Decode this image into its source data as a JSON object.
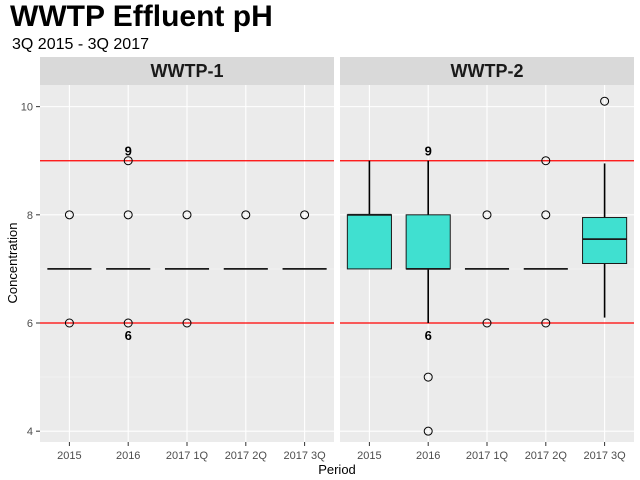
{
  "chart_data": {
    "type": "box",
    "title": "WWTP Effluent pH",
    "subtitle": "3Q 2015 - 3Q 2017",
    "xlabel": "Period",
    "ylabel": "Concentration",
    "ylim": [
      3.8,
      10.4
    ],
    "yticks": [
      4,
      6,
      8,
      10
    ],
    "categories": [
      "2015",
      "2016",
      "2017 1Q",
      "2017 2Q",
      "2017 3Q"
    ],
    "reference_lines": [
      {
        "value": 9,
        "label": "9",
        "label_category": "2016",
        "color": "#ff0000"
      },
      {
        "value": 6,
        "label": "6",
        "label_category": "2016",
        "color": "#ff0000"
      }
    ],
    "box_color": "#40e0d0",
    "panels": [
      {
        "name": "WWTP-1",
        "boxes": [
          {
            "category": "2015",
            "lower_whisker": 7,
            "q1": 7,
            "median": 7,
            "q3": 7,
            "upper_whisker": 7,
            "outliers": [
              8,
              6
            ]
          },
          {
            "category": "2016",
            "lower_whisker": 7,
            "q1": 7,
            "median": 7,
            "q3": 7,
            "upper_whisker": 7,
            "outliers": [
              9,
              8,
              6
            ]
          },
          {
            "category": "2017 1Q",
            "lower_whisker": 7,
            "q1": 7,
            "median": 7,
            "q3": 7,
            "upper_whisker": 7,
            "outliers": [
              8,
              6
            ]
          },
          {
            "category": "2017 2Q",
            "lower_whisker": 7,
            "q1": 7,
            "median": 7,
            "q3": 7,
            "upper_whisker": 7,
            "outliers": [
              8
            ]
          },
          {
            "category": "2017 3Q",
            "lower_whisker": 7,
            "q1": 7,
            "median": 7,
            "q3": 7,
            "upper_whisker": 7,
            "outliers": [
              8
            ]
          }
        ]
      },
      {
        "name": "WWTP-2",
        "boxes": [
          {
            "category": "2015",
            "lower_whisker": 7,
            "q1": 7,
            "median": 8,
            "q3": 8,
            "upper_whisker": 9,
            "outliers": []
          },
          {
            "category": "2016",
            "lower_whisker": 6,
            "q1": 7,
            "median": 7,
            "q3": 8,
            "upper_whisker": 9,
            "outliers": [
              5,
              4
            ]
          },
          {
            "category": "2017 1Q",
            "lower_whisker": 7,
            "q1": 7,
            "median": 7,
            "q3": 7,
            "upper_whisker": 7,
            "outliers": [
              8,
              6
            ]
          },
          {
            "category": "2017 2Q",
            "lower_whisker": 7,
            "q1": 7,
            "median": 7,
            "q3": 7,
            "upper_whisker": 7,
            "outliers": [
              9,
              8,
              6
            ]
          },
          {
            "category": "2017 3Q",
            "lower_whisker": 6.1,
            "q1": 7.1,
            "median": 7.55,
            "q3": 7.95,
            "upper_whisker": 8.95,
            "outliers": [
              10.1
            ]
          }
        ]
      }
    ]
  }
}
